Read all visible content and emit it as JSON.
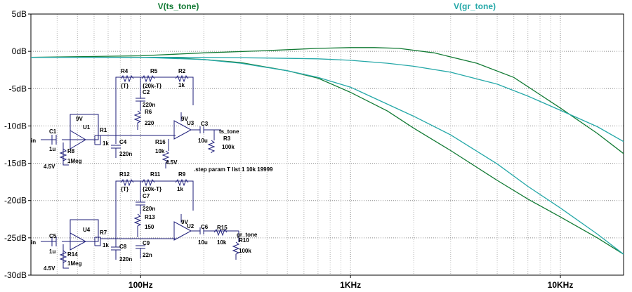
{
  "chart_data": {
    "type": "line",
    "title": "",
    "xlabel": "",
    "ylabel": "",
    "x_scale": "log",
    "xlim": [
      30,
      20000
    ],
    "ylim": [
      -30,
      5
    ],
    "grid": true,
    "x_ticks": [
      {
        "value": 100,
        "label": "100Hz"
      },
      {
        "value": 1000,
        "label": "1KHz"
      },
      {
        "value": 10000,
        "label": "10KHz"
      }
    ],
    "y_ticks": [
      {
        "value": 5,
        "label": "5dB"
      },
      {
        "value": 0,
        "label": "0dB"
      },
      {
        "value": -5,
        "label": "-5dB"
      },
      {
        "value": -10,
        "label": "-10dB"
      },
      {
        "value": -15,
        "label": "-15dB"
      },
      {
        "value": -20,
        "label": "-20dB"
      },
      {
        "value": -25,
        "label": "-25dB"
      },
      {
        "value": -30,
        "label": "-30dB"
      }
    ],
    "series": [
      {
        "name": "V(ts_tone)",
        "color": "#127A34",
        "steps": [
          {
            "x": [
              30,
              100,
              200,
              400,
              700,
              1000,
              1300,
              1700,
              2500,
              4000,
              6000,
              10000,
              15000,
              20000
            ],
            "y": [
              -0.8,
              -0.6,
              -0.2,
              0.1,
              0.4,
              0.5,
              0.5,
              0.4,
              -0.2,
              -1.6,
              -3.5,
              -7.6,
              -11.0,
              -13.7
            ]
          },
          {
            "x": [
              30,
              100,
              150,
              200,
              300,
              500,
              700,
              1000,
              1500,
              2000,
              3000,
              5000,
              7000,
              10000,
              15000,
              20000
            ],
            "y": [
              -0.8,
              -0.8,
              -0.9,
              -1.1,
              -1.5,
              -2.6,
              -3.6,
              -5.5,
              -8.0,
              -10.3,
              -13.3,
              -17.3,
              -19.8,
              -22.2,
              -25.0,
              -27.2
            ]
          }
        ]
      },
      {
        "name": "V(gr_tone)",
        "color": "#25A8A8",
        "steps": [
          {
            "x": [
              30,
              100,
              200,
              300,
              500,
              700,
              1000,
              2000,
              3000,
              5000,
              7000,
              10000,
              15000,
              20000
            ],
            "y": [
              -0.8,
              -0.8,
              -1.1,
              -1.6,
              -2.6,
              -3.5,
              -4.8,
              -8.7,
              -11.2,
              -15.1,
              -18.1,
              -21.0,
              -24.5,
              -27.2
            ]
          },
          {
            "x": [
              30,
              100,
              200,
              400,
              700,
              1000,
              1500,
              2000,
              3000,
              5000,
              7000,
              10000,
              15000,
              20000
            ],
            "y": [
              -0.8,
              -0.8,
              -0.8,
              -0.9,
              -1.0,
              -1.2,
              -1.6,
              -2.0,
              -2.8,
              -4.4,
              -6.0,
              -7.9,
              -10.1,
              -12.1
            ]
          }
        ]
      }
    ],
    "schematic": {
      "wire_color": "#1E1E7A",
      "labels": [
        {
          "text": "U1"
        },
        {
          "text": "C1"
        },
        {
          "text": "in"
        },
        {
          "text": "1u"
        },
        {
          "text": "R8"
        },
        {
          "text": "1Meg"
        },
        {
          "text": "4.5V"
        },
        {
          "text": "9V"
        },
        {
          "text": "R1"
        },
        {
          "text": "1k"
        },
        {
          "text": "C4"
        },
        {
          "text": "220n"
        },
        {
          "text": "R4"
        },
        {
          "text": "{T}"
        },
        {
          "text": "R5"
        },
        {
          "text": "{20k-T}"
        },
        {
          "text": "R2"
        },
        {
          "text": "1k"
        },
        {
          "text": "C2"
        },
        {
          "text": "220n"
        },
        {
          "text": "R6"
        },
        {
          "text": "220"
        },
        {
          "text": "9V"
        },
        {
          "text": "U3"
        },
        {
          "text": "C3"
        },
        {
          "text": "ts_tone"
        },
        {
          "text": "10u"
        },
        {
          "text": "R3"
        },
        {
          "text": "100k"
        },
        {
          "text": "R16"
        },
        {
          "text": "10k"
        },
        {
          "text": "4.5V"
        },
        {
          "text": ".step param T list 1  10k 19999"
        },
        {
          "text": "R12"
        },
        {
          "text": "R11"
        },
        {
          "text": "R9"
        },
        {
          "text": "{T}"
        },
        {
          "text": "{20k-T}"
        },
        {
          "text": "1k"
        },
        {
          "text": "C7"
        },
        {
          "text": "220n"
        },
        {
          "text": "R13"
        },
        {
          "text": "150"
        },
        {
          "text": "C5"
        },
        {
          "text": "U4"
        },
        {
          "text": "1u"
        },
        {
          "text": "in"
        },
        {
          "text": "R14"
        },
        {
          "text": "1Meg"
        },
        {
          "text": "4.5V"
        },
        {
          "text": "R7"
        },
        {
          "text": "1k"
        },
        {
          "text": "C8"
        },
        {
          "text": "220n"
        },
        {
          "text": "C9"
        },
        {
          "text": "22n"
        },
        {
          "text": "U2"
        },
        {
          "text": "C6"
        },
        {
          "text": "10u"
        },
        {
          "text": "R15"
        },
        {
          "text": "10k"
        },
        {
          "text": "gr_tone"
        },
        {
          "text": "R10"
        },
        {
          "text": "100k"
        },
        {
          "text": "9V"
        }
      ]
    }
  }
}
